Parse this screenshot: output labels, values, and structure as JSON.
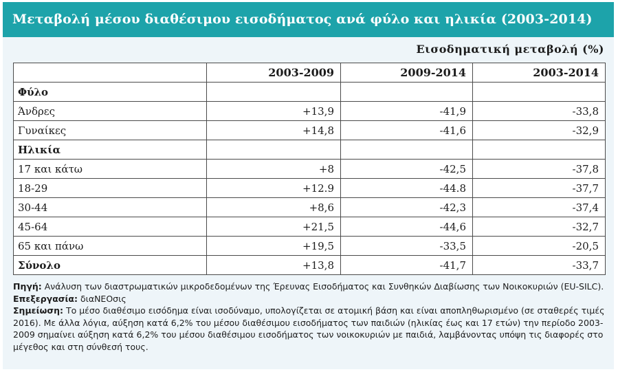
{
  "title": "Μεταβολή μέσου διαθέσιμου εισοδήματος ανά φύλο και ηλικία (2003-2014)",
  "unit_label": "Εισοδηματική μεταβολή (%)",
  "table": {
    "columns": [
      "",
      "2003-2009",
      "2009-2014",
      "2003-2014"
    ],
    "rows": [
      {
        "label": "Φύλο",
        "values": [
          "",
          "",
          ""
        ],
        "kind": "group"
      },
      {
        "label": "Άνδρες",
        "values": [
          "+13,9",
          "-41,9",
          "-33,8"
        ],
        "kind": "row"
      },
      {
        "label": "Γυναίκες",
        "values": [
          "+14,8",
          "-41,6",
          "-32,9"
        ],
        "kind": "row"
      },
      {
        "label": "Ηλικία",
        "values": [
          "",
          "",
          ""
        ],
        "kind": "group"
      },
      {
        "label": "17 και κάτω",
        "values": [
          "+8",
          "-42,5",
          "-37,8"
        ],
        "kind": "row"
      },
      {
        "label": "18-29",
        "values": [
          "+12.9",
          "-44.8",
          "-37,7"
        ],
        "kind": "row"
      },
      {
        "label": "30-44",
        "values": [
          "+8,6",
          "-42,3",
          "-37,4"
        ],
        "kind": "row"
      },
      {
        "label": "45-64",
        "values": [
          "+21,5",
          "-44,6",
          "-32,7"
        ],
        "kind": "row"
      },
      {
        "label": "65 και πάνω",
        "values": [
          "+19,5",
          "-33,5",
          "-20,5"
        ],
        "kind": "row"
      },
      {
        "label": "Σύνολο",
        "values": [
          "+13,8",
          "-41,7",
          "-33,7"
        ],
        "kind": "total"
      }
    ]
  },
  "notes": {
    "source_label": "Πηγή:",
    "source_text": " Ανάλυση των διαστρωματικών μικροδεδομένων της Έρευνας Εισοδήματος και Συνθηκών Διαβίωσης των Νοικοκυριών (EU-SILC).",
    "processing_label": " Επεξεργασία:",
    "processing_text": " διαΝΕΟσις",
    "note_label": "Σημείωση:",
    "note_text": " Το μέσο διαθέσιμο εισόδημα είναι ισοδύναμο, υπολογίζεται σε ατομική βάση και είναι αποπληθωρισμένο (σε σταθερές τιμές 2016). Με άλλα λόγια, αύξηση κατά 6,2% του μέσου διαθέσιμου εισοδήματος των παιδιών (ηλικίας έως και 17 ετών) την περίοδο 2003-2009 σημαίνει αύξηση κατά 6,2% του μέσου διαθέσιμου εισοδήματος των νοικοκυριών με παιδιά, λαμβάνοντας υπόψη τις διαφορές στο μέγεθος και στη σύνθεσή τους."
  },
  "colors": {
    "title_bar": "#1da3aa",
    "panel_background": "#eef5f9",
    "table_background": "#ffffff"
  }
}
